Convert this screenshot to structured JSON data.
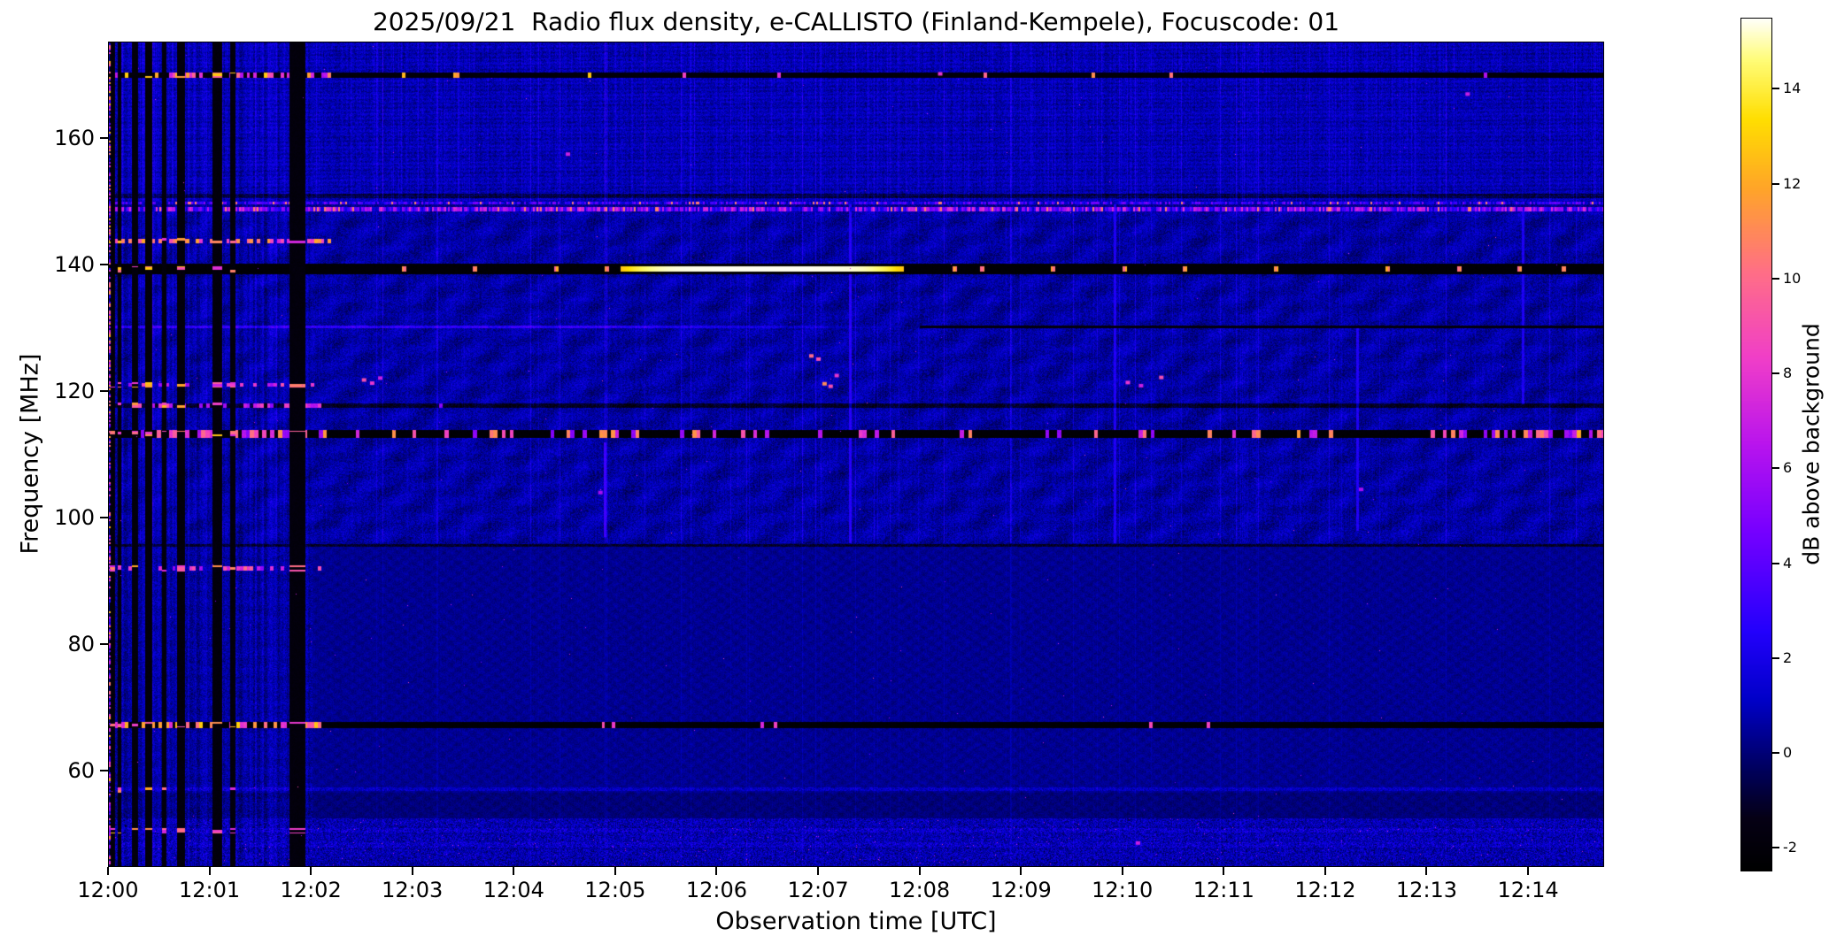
{
  "figure": {
    "title": "2025/09/21  Radio flux density, e-CALLISTO (Finland-Kempele), Focuscode: 01",
    "xlabel": "Observation time [UTC]",
    "ylabel": "Frequency [MHz]",
    "colorbar_label": "dB above background"
  },
  "chart_data": {
    "type": "heatmap",
    "title": "2025/09/21  Radio flux density, e-CALLISTO (Finland-Kempele), Focuscode: 01",
    "xlabel": "Observation time [UTC]",
    "ylabel": "Frequency [MHz]",
    "x_ticks": [
      {
        "label": "12:00",
        "min": 0
      },
      {
        "label": "12:01",
        "min": 1
      },
      {
        "label": "12:02",
        "min": 2
      },
      {
        "label": "12:03",
        "min": 3
      },
      {
        "label": "12:04",
        "min": 4
      },
      {
        "label": "12:05",
        "min": 5
      },
      {
        "label": "12:06",
        "min": 6
      },
      {
        "label": "12:07",
        "min": 7
      },
      {
        "label": "12:08",
        "min": 8
      },
      {
        "label": "12:09",
        "min": 9
      },
      {
        "label": "12:10",
        "min": 10
      },
      {
        "label": "12:11",
        "min": 11
      },
      {
        "label": "12:12",
        "min": 12
      },
      {
        "label": "12:13",
        "min": 13
      },
      {
        "label": "12:14",
        "min": 14
      }
    ],
    "x_range_min": [
      0,
      14.75
    ],
    "y_ticks_mhz": [
      160,
      140,
      120,
      100,
      80,
      60
    ],
    "y_range_mhz": [
      44.8,
      175.3
    ],
    "colorbar": {
      "label": "dB above background",
      "ticks": [
        14,
        12,
        10,
        8,
        6,
        4,
        2,
        0,
        -2
      ],
      "range_db": [
        -2.5,
        15.5
      ]
    },
    "colormap_stops": [
      [
        0.0,
        0,
        0,
        0
      ],
      [
        0.06,
        5,
        0,
        20
      ],
      [
        0.12,
        0,
        0,
        95
      ],
      [
        0.2,
        0,
        0,
        200
      ],
      [
        0.28,
        35,
        0,
        252
      ],
      [
        0.4,
        120,
        0,
        255
      ],
      [
        0.5,
        185,
        20,
        237
      ],
      [
        0.6,
        240,
        62,
        200
      ],
      [
        0.7,
        255,
        110,
        135
      ],
      [
        0.8,
        255,
        165,
        40
      ],
      [
        0.88,
        255,
        222,
        0
      ],
      [
        0.95,
        255,
        252,
        120
      ],
      [
        1.0,
        255,
        255,
        255
      ]
    ],
    "background": {
      "base_db": 0.45,
      "noise_db": 1.6,
      "moire_band_mhz": [
        96,
        148.5
      ],
      "high_band_mhz": [
        150,
        175.3
      ],
      "smooth_band_mhz": [
        52.5,
        95.5
      ],
      "low_band_mhz": [
        44.8,
        52.5
      ],
      "streak_fraction": 0.04
    },
    "features": {
      "calibration_bars_min": [
        {
          "t": 0.045,
          "w": 0.05
        },
        {
          "t": 0.115,
          "w": 0.04
        },
        {
          "t": 0.265,
          "w": 0.06
        },
        {
          "t": 0.405,
          "w": 0.07
        },
        {
          "t": 0.555,
          "w": 0.05
        },
        {
          "t": 0.72,
          "w": 0.07
        },
        {
          "t": 1.08,
          "w": 0.1
        },
        {
          "t": 1.23,
          "w": 0.05
        },
        {
          "t": 1.87,
          "w": 0.16
        }
      ],
      "bar_speckle_freqs_mhz": [
        170.0,
        143.8,
        139.3,
        121.0,
        117.8,
        113.3,
        92.0,
        67.3,
        57.0,
        50.5
      ],
      "rfi_lines": [
        {
          "f": 170.0,
          "hw": 0.45,
          "base": -1.9,
          "speckle_p_early": 0.5,
          "speckle_p_late": 0.04,
          "early_end_min": 2.2,
          "speckle_v": [
            6,
            13
          ]
        },
        {
          "f": 148.8,
          "hw": 0.35,
          "speckle_row": true,
          "v": [
            1.0,
            8.0
          ]
        },
        {
          "f": 149.8,
          "hw": 0.25,
          "speckle_row": true,
          "v": [
            0.5,
            5.0
          ]
        },
        {
          "f": 150.9,
          "hw": 0.3,
          "base_dv": -1.6
        },
        {
          "f": 143.8,
          "hw": 0.35,
          "speckle_p_early": 0.55,
          "speckle_p_late": 0.0,
          "early_end_min": 2.2,
          "speckle_v": [
            7,
            12
          ]
        },
        {
          "f": 139.35,
          "hw": 0.85,
          "base": -2.2,
          "event": {
            "t0": 5.05,
            "t1": 7.85,
            "peak_v": 15.4,
            "edge_v": 12.5,
            "hw": 0.4
          },
          "ticks_min": [
            2.92,
            3.62,
            4.42,
            4.92,
            8.35,
            8.62,
            9.32,
            10.02,
            10.62,
            11.52,
            12.62,
            13.32,
            13.92,
            14.35
          ],
          "tick_v": 11
        },
        {
          "f": 130.2,
          "hw": 0.25,
          "elevated": {
            "t_end": 8.0,
            "fade_start": 5.0,
            "dv": 2.2
          },
          "dark_after": {
            "t0": 8.0,
            "v": -1.8
          }
        },
        {
          "f": 121.0,
          "hw": 0.3,
          "speckle_p_early": 0.3,
          "speckle_p_late": 0.0,
          "early_end_min": 2.1,
          "speckle_v": [
            5,
            9
          ]
        },
        {
          "f": 117.8,
          "hw": 0.35,
          "base_dv": -1.8,
          "speckle_p_early": 0.4,
          "speckle_p_late": 0.01,
          "early_end_min": 2.1,
          "speckle_v": [
            5,
            9
          ]
        },
        {
          "f": 113.3,
          "hw": 0.6,
          "base": -2.2,
          "speckle_seg_per_min": 25,
          "dense_ranges_min": [
            [
              0.25,
              2.05
            ],
            [
              13.0,
              14.75
            ]
          ],
          "p_dense": 0.55,
          "p_sparse": 0.18,
          "speckle_v": [
            5,
            12
          ]
        },
        {
          "f": 95.7,
          "hw": 0.2,
          "base_dv": -1.5
        },
        {
          "f": 92.0,
          "hw": 0.3,
          "speckle_p_early": 0.35,
          "speckle_p_late": 0.0,
          "early_end_min": 2.1,
          "speckle_v": [
            5,
            10
          ]
        },
        {
          "f": 67.3,
          "hw": 0.5,
          "base": -2.2,
          "speckle_p_early": 0.5,
          "speckle_p_late": 0.015,
          "early_end_min": 2.1,
          "speckle_v": [
            7,
            13
          ]
        },
        {
          "f": 57.1,
          "hw": 0.3,
          "texture_dv": 1.5
        },
        {
          "f": 50.6,
          "hw": 0.4,
          "texture_dv": 1.2
        },
        {
          "f": 48.3,
          "hw": 0.4,
          "texture_dv": 1.0
        }
      ],
      "v_streaks": [
        {
          "t": 7.32,
          "f0": 96,
          "f1": 150,
          "v": 2.6
        },
        {
          "t": 9.93,
          "f0": 96,
          "f1": 150,
          "v": 2.4
        },
        {
          "t": 4.9,
          "f0": 97,
          "f1": 112,
          "v": 3.2
        },
        {
          "t": 12.32,
          "f0": 98,
          "f1": 130,
          "v": 2.4
        },
        {
          "t": 13.95,
          "f0": 118,
          "f1": 149,
          "v": 2.3
        }
      ],
      "dots": [
        {
          "t": 4.53,
          "f": 157.5,
          "v": 7
        },
        {
          "t": 2.52,
          "f": 121.8,
          "v": 9
        },
        {
          "t": 2.6,
          "f": 121.3,
          "v": 8
        },
        {
          "t": 2.68,
          "f": 122.1,
          "v": 7
        },
        {
          "t": 6.93,
          "f": 125.6,
          "v": 10
        },
        {
          "t": 7.0,
          "f": 125.1,
          "v": 9
        },
        {
          "t": 7.06,
          "f": 121.2,
          "v": 11
        },
        {
          "t": 7.12,
          "f": 120.8,
          "v": 9
        },
        {
          "t": 7.18,
          "f": 122.5,
          "v": 8
        },
        {
          "t": 10.05,
          "f": 121.4,
          "v": 8
        },
        {
          "t": 10.18,
          "f": 120.9,
          "v": 7
        },
        {
          "t": 10.38,
          "f": 122.2,
          "v": 9
        },
        {
          "t": 10.15,
          "f": 48.6,
          "v": 7
        },
        {
          "t": 12.35,
          "f": 104.5,
          "v": 6
        },
        {
          "t": 4.85,
          "f": 104.0,
          "v": 6
        },
        {
          "t": 13.4,
          "f": 167.0,
          "v": 7
        },
        {
          "t": 8.2,
          "f": 170.2,
          "v": 8
        }
      ],
      "start_column_speckle_end_min": 0.03,
      "early_striping_end_min": 2.02
    }
  }
}
